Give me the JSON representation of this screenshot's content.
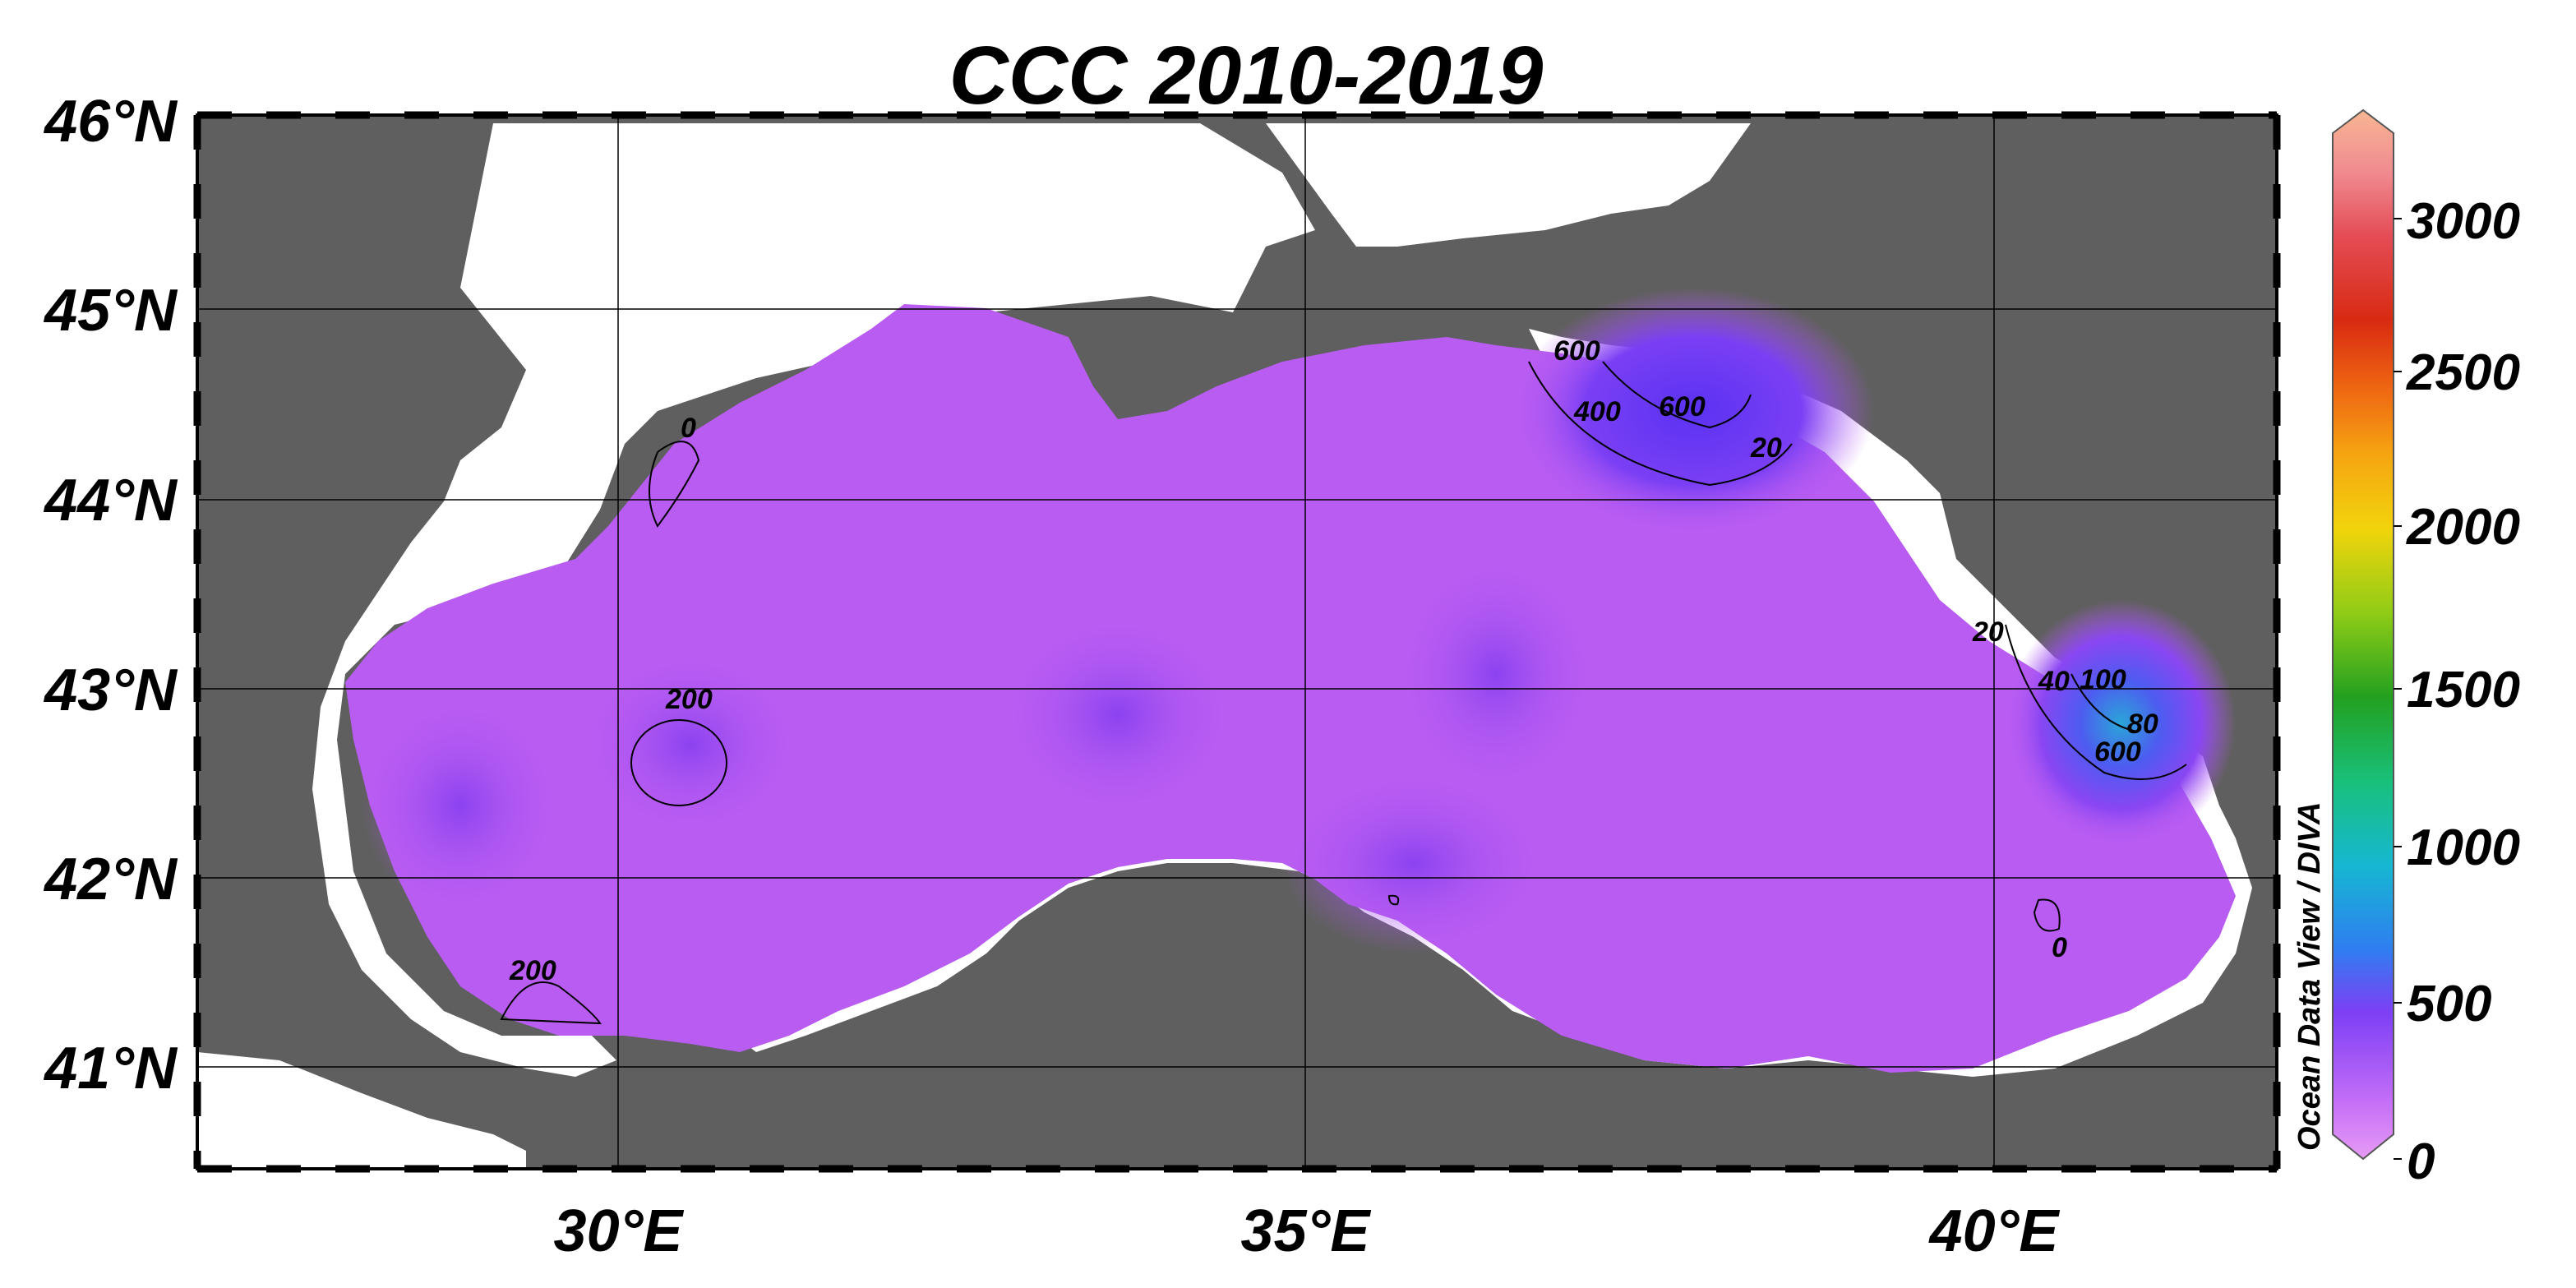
{
  "title": "CCC 2010-2019",
  "y_axis_labels": [
    "46°N",
    "45°N",
    "44°N",
    "43°N",
    "42°N",
    "41°N"
  ],
  "x_axis_labels": [
    "30°E",
    "35°E",
    "40°E"
  ],
  "colorbar": {
    "tick_labels": [
      "3000",
      "2500",
      "2000",
      "1500",
      "1000",
      "500",
      "0"
    ],
    "range": [
      0,
      3300
    ],
    "colors": [
      "#e79bf5",
      "#c06bf7",
      "#7d3ff5",
      "#2f7ef0",
      "#16b7d2",
      "#19c07a",
      "#23a020",
      "#8fcc16",
      "#f1d40c",
      "#f6a611",
      "#f06a12",
      "#d82a12",
      "#e44c55",
      "#f08a90",
      "#f8b693"
    ],
    "credit": "Ocean Data View / DIVA"
  },
  "contour_labels": [
    "200",
    "200",
    "0",
    "600",
    "400",
    "600",
    "20",
    "20",
    "40",
    "100",
    "80",
    "600",
    "0"
  ],
  "style": {
    "land": "#5f5f5f",
    "field": "#b85cf2",
    "field_dark": "#9a48ef",
    "field_deep": "#6f38f0",
    "hot": "#2ec6c0"
  }
}
